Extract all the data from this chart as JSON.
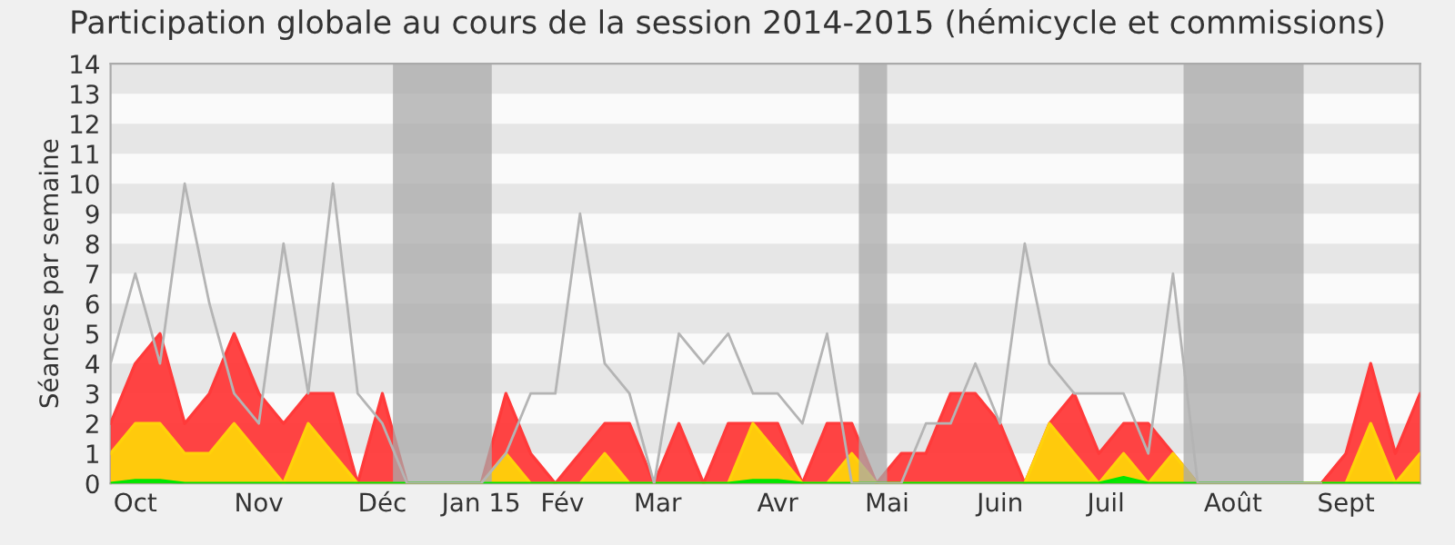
{
  "chart_data": {
    "type": "area",
    "title": "Participation globale au cours de la session 2014-2015 (hémicycle et commissions)",
    "ylabel": "Séances par semaine",
    "x": [
      "2014-10-06",
      "2014-10-13",
      "2014-10-20",
      "2014-10-27",
      "2014-11-03",
      "2014-11-10",
      "2014-11-17",
      "2014-11-24",
      "2014-12-01",
      "2014-12-08",
      "2014-12-15",
      "2014-12-22",
      "2014-12-29",
      "2015-01-05",
      "2015-01-12",
      "2015-01-19",
      "2015-01-26",
      "2015-02-02",
      "2015-02-09",
      "2015-02-16",
      "2015-02-23",
      "2015-03-02",
      "2015-03-09",
      "2015-03-16",
      "2015-03-23",
      "2015-03-30",
      "2015-04-06",
      "2015-04-13",
      "2015-04-20",
      "2015-04-27",
      "2015-05-04",
      "2015-05-11",
      "2015-05-18",
      "2015-05-25",
      "2015-06-01",
      "2015-06-08",
      "2015-06-15",
      "2015-06-22",
      "2015-06-29",
      "2015-07-06",
      "2015-07-13",
      "2015-07-20",
      "2015-07-27",
      "2015-08-03",
      "2015-08-10",
      "2015-08-17",
      "2015-08-24",
      "2015-08-31",
      "2015-09-07",
      "2015-09-14",
      "2015-09-21",
      "2015-09-28",
      "2015-10-05",
      "2015-10-12"
    ],
    "xlim": [
      "2014-10-06",
      "2015-10-12"
    ],
    "xticks": [
      {
        "value": "2014-10-13",
        "label": "Oct"
      },
      {
        "value": "2014-11-17",
        "label": "Nov"
      },
      {
        "value": "2014-12-22",
        "label": "Déc"
      },
      {
        "value": "2015-01-19",
        "label": "Jan 15"
      },
      {
        "value": "2015-02-11",
        "label": "Fév"
      },
      {
        "value": "2015-03-10",
        "label": "Mar"
      },
      {
        "value": "2015-04-13",
        "label": "Avr"
      },
      {
        "value": "2015-05-14",
        "label": "Mai"
      },
      {
        "value": "2015-06-15",
        "label": "Juin"
      },
      {
        "value": "2015-07-15",
        "label": "Juil"
      },
      {
        "value": "2015-08-20",
        "label": "Août"
      },
      {
        "value": "2015-09-21",
        "label": "Sept"
      }
    ],
    "bands": [
      {
        "axis": "x",
        "from": "2014-12-25",
        "to": "2015-01-22",
        "color": "#aaaaaa"
      },
      {
        "axis": "x",
        "from": "2015-05-06",
        "to": "2015-05-14",
        "color": "#aaaaaa"
      },
      {
        "axis": "x",
        "from": "2015-08-06",
        "to": "2015-09-09",
        "color": "#aaaaaa"
      }
    ],
    "series": [
      {
        "type": "line",
        "color": "#b4b4b4",
        "values": [
          4,
          7,
          4,
          10,
          6,
          3,
          2,
          8,
          3,
          10,
          3,
          2,
          0,
          0,
          0,
          0,
          1,
          3,
          3,
          9,
          4,
          3,
          0,
          5,
          4,
          5,
          3,
          3,
          2,
          5,
          0,
          0,
          0,
          2,
          2,
          4,
          2,
          8,
          4,
          3,
          3,
          3,
          1,
          7,
          0,
          0,
          0,
          0,
          0,
          0,
          null,
          null,
          null,
          null
        ]
      },
      {
        "color": "#ff3a3a",
        "values": [
          2,
          4,
          5,
          2,
          3,
          5,
          3,
          2,
          3,
          3,
          0,
          3,
          0,
          0,
          0,
          0,
          3,
          1,
          0,
          1,
          2,
          2,
          0,
          2,
          0,
          2,
          2,
          2,
          0,
          2,
          2,
          0,
          1,
          1,
          3,
          3,
          2,
          0,
          2,
          3,
          1,
          2,
          2,
          1,
          0,
          0,
          0,
          0,
          0,
          0,
          1,
          4,
          1,
          3
        ]
      },
      {
        "color": "#ffd20a",
        "values": [
          1,
          2,
          2,
          1,
          1,
          2,
          1,
          0,
          2,
          1,
          0,
          0,
          0,
          0,
          0,
          0,
          1,
          0,
          0,
          0,
          1,
          0,
          0,
          0,
          0,
          0,
          2,
          1,
          0,
          0,
          1,
          0,
          0,
          0,
          0,
          0,
          0,
          0,
          2,
          1,
          0,
          1,
          0,
          1,
          0,
          0,
          0,
          0,
          0,
          0,
          0,
          2,
          0,
          1
        ]
      },
      {
        "color": "#00e600",
        "values": [
          0,
          0.1,
          0.1,
          0,
          0,
          0,
          0,
          0,
          0,
          0,
          0,
          0,
          0,
          0,
          0,
          0,
          0,
          0,
          0,
          0,
          0,
          0,
          0,
          0,
          0,
          0,
          0.1,
          0.1,
          0,
          0,
          0,
          0,
          0,
          0,
          0,
          0,
          0,
          0,
          0,
          0,
          0,
          0.2,
          0,
          0,
          0,
          0,
          0,
          0,
          0,
          0,
          0,
          0,
          0,
          0
        ]
      }
    ],
    "ylim": [
      0,
      14
    ],
    "yticks": [
      0,
      1,
      2,
      3,
      4,
      5,
      6,
      7,
      8,
      9,
      10,
      11,
      12,
      13,
      14
    ],
    "legend": false
  }
}
